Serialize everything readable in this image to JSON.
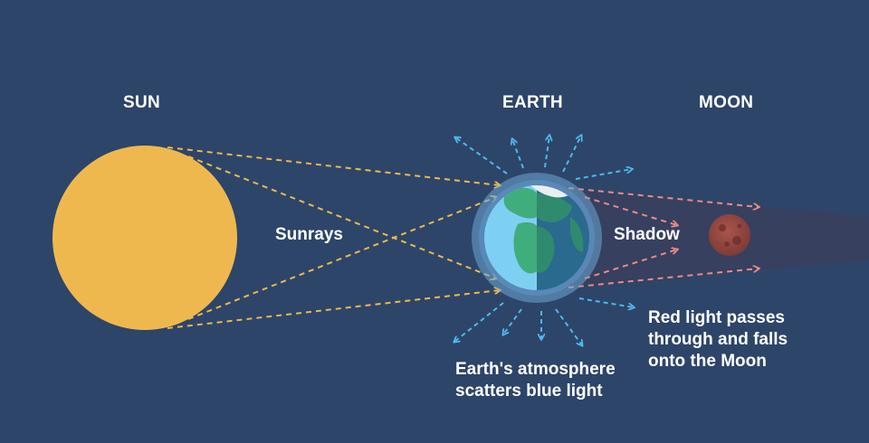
{
  "titles": {
    "sun": "SUN",
    "earth": "EARTH",
    "moon": "MOON"
  },
  "labels": {
    "sunrays": "Sunrays",
    "shadow": "Shadow",
    "red_light": [
      "Red light passes",
      "through and falls",
      "onto the Moon"
    ],
    "atmosphere": [
      "Earth's atmosphere",
      "scatters blue light"
    ]
  },
  "colors": {
    "background": "#2d4569",
    "sun": "#efb84f",
    "sunray": "#efb84f",
    "atmosphere_ring": "#6ea8d6",
    "ocean": "#7dd0f2",
    "ocean_night": "#2a6a8f",
    "land": "#3fad7c",
    "land_night": "#2f8a6e",
    "ice": "#e9eef2",
    "scatter_arrow": "#4db8ec",
    "red_arrow": "#e98b88",
    "moon": "#9a4a43",
    "shadow_cone": "#3a3f5e"
  }
}
